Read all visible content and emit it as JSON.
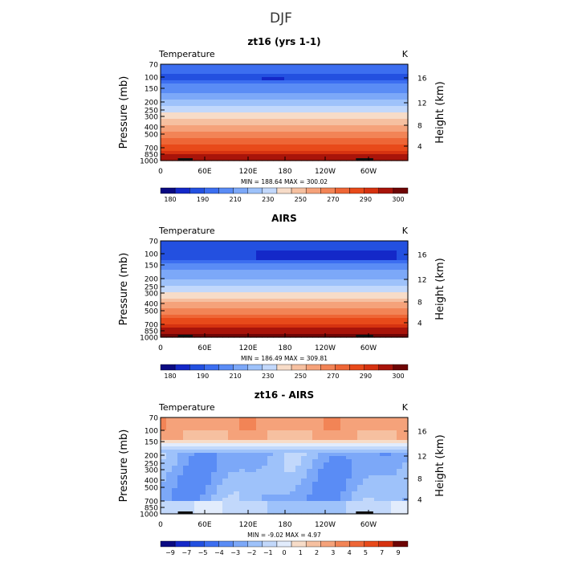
{
  "figure_title": "DJF",
  "chart_data": [
    {
      "type": "heatmap",
      "title": "zt16 (yrs 1-1)",
      "variable": "Temperature",
      "units": "K",
      "ylabel": "Pressure (mb)",
      "ylabel_right": "Height (km)",
      "xticks": [
        "0",
        "60E",
        "120E",
        "180",
        "120W",
        "60W"
      ],
      "yticks": [
        "70",
        "100",
        "150",
        "200",
        "250",
        "300",
        "400",
        "500",
        "700",
        "850",
        "1000"
      ],
      "yticks_right": [
        "4",
        "8",
        "12",
        "16"
      ],
      "stats": "MIN = 188.64   MAX = 300.02",
      "min": 188.64,
      "max": 300.02,
      "colorbar_labels": [
        "180",
        "190",
        "210",
        "230",
        "250",
        "270",
        "290",
        "300"
      ],
      "colorbar_colors": [
        "#0a0a82",
        "#1428c8",
        "#2350e0",
        "#3c6ef0",
        "#5a8cf5",
        "#7ca8f8",
        "#9ec2fa",
        "#c2d8fb",
        "#f7dcc8",
        "#f6c0a0",
        "#f5a27a",
        "#f28456",
        "#ee6636",
        "#e84a1a",
        "#d63210",
        "#a8140a",
        "#6e0505"
      ],
      "field": "temp_model"
    },
    {
      "type": "heatmap",
      "title": "AIRS",
      "variable": "Temperature",
      "units": "K",
      "ylabel": "Pressure (mb)",
      "ylabel_right": "Height (km)",
      "xticks": [
        "0",
        "60E",
        "120E",
        "180",
        "120W",
        "60W"
      ],
      "yticks": [
        "70",
        "100",
        "150",
        "200",
        "250",
        "300",
        "400",
        "500",
        "700",
        "850",
        "1000"
      ],
      "yticks_right": [
        "4",
        "8",
        "12",
        "16"
      ],
      "stats": "MIN = 186.49   MAX = 309.81",
      "min": 186.49,
      "max": 309.81,
      "colorbar_labels": [
        "180",
        "190",
        "210",
        "230",
        "250",
        "270",
        "290",
        "300"
      ],
      "colorbar_colors": [
        "#0a0a82",
        "#1428c8",
        "#2350e0",
        "#3c6ef0",
        "#5a8cf5",
        "#7ca8f8",
        "#9ec2fa",
        "#c2d8fb",
        "#f7dcc8",
        "#f6c0a0",
        "#f5a27a",
        "#f28456",
        "#ee6636",
        "#e84a1a",
        "#d63210",
        "#a8140a",
        "#6e0505"
      ],
      "field": "temp_obs"
    },
    {
      "type": "heatmap",
      "title": "zt16 - AIRS",
      "variable": "Temperature",
      "units": "K",
      "ylabel": "Pressure (mb)",
      "ylabel_right": "Height (km)",
      "xticks": [
        "0",
        "60E",
        "120E",
        "180",
        "120W",
        "60W"
      ],
      "yticks": [
        "70",
        "100",
        "150",
        "200",
        "250",
        "300",
        "400",
        "500",
        "700",
        "850",
        "1000"
      ],
      "yticks_right": [
        "4",
        "8",
        "12",
        "16"
      ],
      "stats": "MIN =  -9.02   MAX =    4.97",
      "min": -9.02,
      "max": 4.97,
      "colorbar_labels": [
        "-9",
        "-7",
        "-5",
        "-4",
        "-3",
        "-2",
        "-1",
        "0",
        "1",
        "2",
        "3",
        "4",
        "5",
        "7",
        "9"
      ],
      "colorbar_colors": [
        "#0a0a82",
        "#1428c8",
        "#2350e0",
        "#3c6ef0",
        "#5a8cf5",
        "#7ca8f8",
        "#9ec2fa",
        "#c2d8fb",
        "#e2ecfc",
        "#f7dcc8",
        "#f6c0a0",
        "#f5a27a",
        "#f28456",
        "#ee6636",
        "#e84a1a",
        "#d63210",
        "#6e0505"
      ],
      "field": "temp_diff"
    }
  ]
}
